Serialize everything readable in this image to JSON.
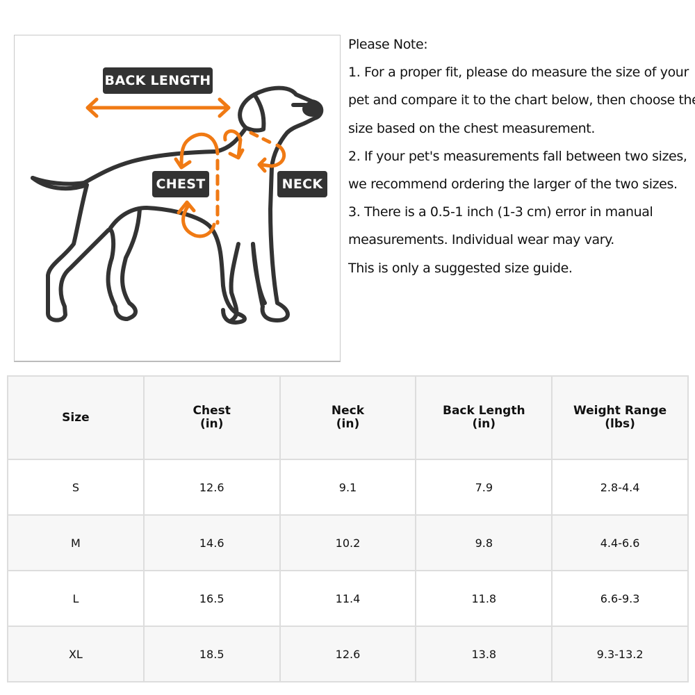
{
  "diagram": {
    "labels": {
      "back_length": "BACK LENGTH",
      "chest": "CHEST",
      "neck": "NECK"
    },
    "colors": {
      "arrow": "#f07a14",
      "outline": "#333333",
      "label_bg": "#333333"
    }
  },
  "notes": {
    "lines": [
      "Please Note:",
      "1. For a proper fit, please do measure the size of your",
      "pet and compare it to the chart below, then choose the",
      "size based on the chest measurement.",
      "2. If your pet's measurements fall between two sizes,",
      "we recommend ordering the larger of the two sizes.",
      "3. There is a 0.5-1 inch (1-3 cm) error in manual",
      "measurements. Individual wear may vary.",
      "This is only a suggested size guide."
    ]
  },
  "table": {
    "headers": [
      {
        "line1": "Size",
        "line2": ""
      },
      {
        "line1": "Chest",
        "line2": "(in)"
      },
      {
        "line1": "Neck",
        "line2": "(in)"
      },
      {
        "line1": "Back Length",
        "line2": "(in)"
      },
      {
        "line1": "Weight Range",
        "line2": "(lbs)"
      }
    ],
    "rows": [
      [
        "S",
        "12.6",
        "9.1",
        "7.9",
        "2.8-4.4"
      ],
      [
        "M",
        "14.6",
        "10.2",
        "9.8",
        "4.4-6.6"
      ],
      [
        "L",
        "16.5",
        "11.4",
        "11.8",
        "6.6-9.3"
      ],
      [
        "XL",
        "18.5",
        "12.6",
        "13.8",
        "9.3-13.2"
      ]
    ]
  }
}
